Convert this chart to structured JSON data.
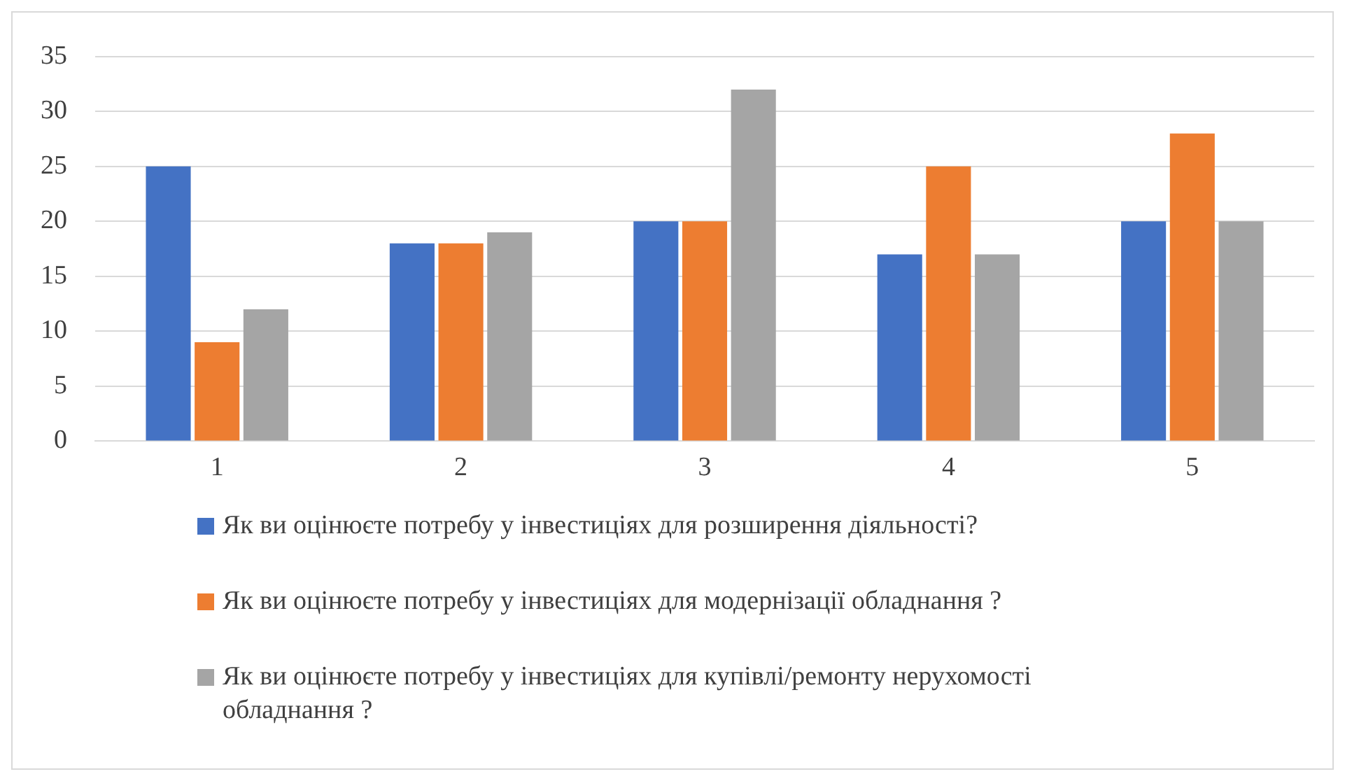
{
  "chart_data": {
    "type": "bar",
    "categories": [
      "1",
      "2",
      "3",
      "4",
      "5"
    ],
    "series": [
      {
        "name": "Як ви оцінюєте потребу у інвестиціях для розширення діяльності?",
        "color": "#4472c4",
        "values": [
          25,
          18,
          20,
          17,
          20
        ]
      },
      {
        "name": "Як ви оцінюєте потребу у інвестиціях для модернізації обладнання ?",
        "color": "#ed7d31",
        "values": [
          9,
          18,
          20,
          25,
          28
        ]
      },
      {
        "name": "Як ви оцінюєте потребу у інвестиціях для купівлі/ремонту нерухомості обладнання ?",
        "color": "#a5a5a5",
        "values": [
          12,
          19,
          32,
          17,
          20
        ]
      }
    ],
    "ylim": [
      0,
      35
    ],
    "yticks": [
      0,
      5,
      10,
      15,
      20,
      25,
      30,
      35
    ],
    "grid": "y",
    "legend": "bottom"
  }
}
